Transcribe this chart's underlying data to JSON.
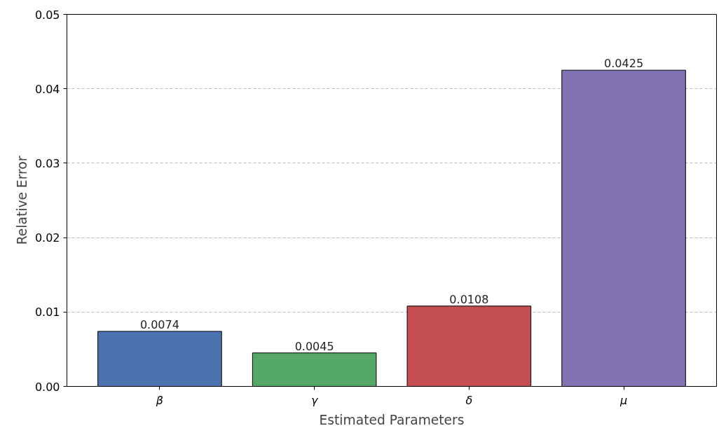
{
  "chart_data": {
    "type": "bar",
    "xlabel": "Estimated Parameters",
    "ylabel": "Relative Error",
    "categories": [
      "β",
      "γ",
      "δ",
      "μ"
    ],
    "values": [
      0.0074,
      0.0045,
      0.0108,
      0.0425
    ],
    "colors": [
      "#4c72b0",
      "#55a868",
      "#c44e52",
      "#8172b2"
    ],
    "ylim": [
      0,
      0.05
    ],
    "yticks": [
      {
        "value": 0,
        "label": "0.00"
      },
      {
        "value": 0.01,
        "label": "0.01"
      },
      {
        "value": 0.02,
        "label": "0.02"
      },
      {
        "value": 0.03,
        "label": "0.03"
      },
      {
        "value": 0.04,
        "label": "0.04"
      },
      {
        "value": 0.05,
        "label": "0.05"
      }
    ],
    "grid": "y",
    "data_labels": true
  }
}
